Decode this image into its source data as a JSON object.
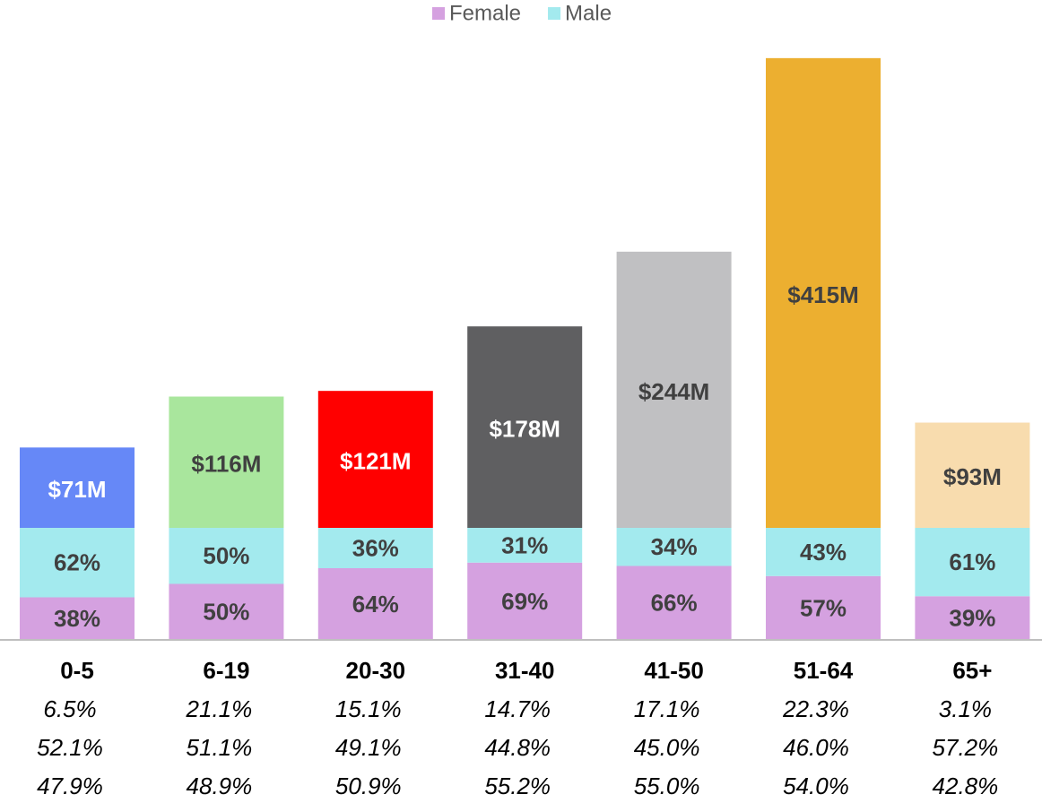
{
  "chart_data": {
    "type": "bar",
    "categories": [
      "0-5",
      "6-19",
      "20-30",
      "31-40",
      "41-50",
      "51-64",
      "65+"
    ],
    "series": [
      {
        "name": "Female",
        "color": "#d5a1e0",
        "values": [
          38,
          50,
          64,
          69,
          66,
          57,
          39
        ],
        "value_labels": [
          "38%",
          "50%",
          "64%",
          "69%",
          "66%",
          "57%",
          "39%"
        ]
      },
      {
        "name": "Male",
        "color": "#a3eaee",
        "values": [
          62,
          50,
          36,
          31,
          34,
          43,
          61
        ],
        "value_labels": [
          "62%",
          "50%",
          "36%",
          "31%",
          "34%",
          "43%",
          "61%"
        ]
      }
    ],
    "totals": {
      "values": [
        71,
        116,
        121,
        178,
        244,
        415,
        93
      ],
      "value_labels": [
        "$71M",
        "$116M",
        "$121M",
        "$178M",
        "$244M",
        "$415M",
        "$93M"
      ],
      "colors": [
        "#6688f7",
        "#a9e69d",
        "#ff0000",
        "#5f5f61",
        "#c0c0c2",
        "#ecaf30",
        "#f8dcae"
      ],
      "label_colors": [
        "#ffffff",
        "#404040",
        "#ffffff",
        "#ffffff",
        "#404040",
        "#404040",
        "#404040"
      ]
    },
    "footer_rows": [
      [
        "6.5%",
        "21.1%",
        "15.1%",
        "14.7%",
        "17.1%",
        "22.3%",
        "3.1%"
      ],
      [
        "52.1%",
        "51.1%",
        "49.1%",
        "44.8%",
        "45.0%",
        "46.0%",
        "57.2%"
      ],
      [
        "47.9%",
        "48.9%",
        "50.9%",
        "55.2%",
        "55.0%",
        "54.0%",
        "42.8%"
      ]
    ],
    "legend": "top"
  }
}
